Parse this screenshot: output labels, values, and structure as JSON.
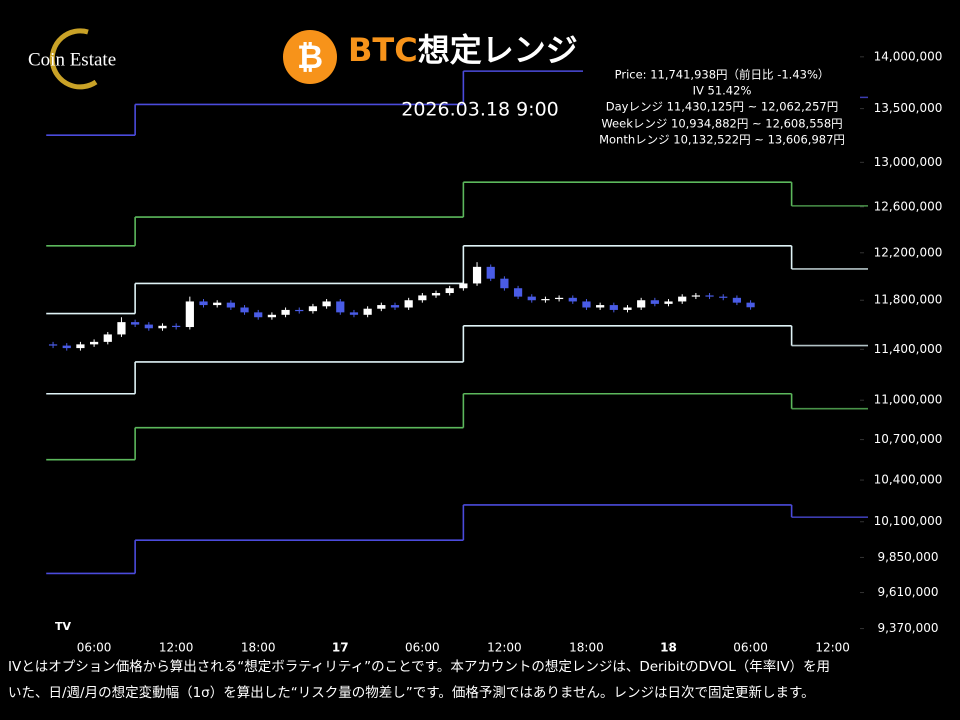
{
  "chart_data": {
    "type": "candlestick",
    "logo": "Coin Estate",
    "title_ticker": "BTC",
    "title": "想定レンジ",
    "subtitle": "2026.03.18 9:00",
    "annotations": [
      "Price: 11,741,938円（前日比 -1.43%）",
      "IV 51.42%",
      "Dayレンジ  11,430,125円 ~ 12,062,257円",
      "Weekレンジ 10,934,882円 ~ 12,608,558円",
      "Monthレンジ 10,132,522円 ~ 13,606,987円"
    ],
    "footnote": [
      "IVとはオプション価格から算出される“想定ボラティリティ”のことです。本アカウントの想定レンジは、DeribitのDVOL（年率IV）を用",
      "いた、日/週/月の想定変動幅（1σ）を算出した“リスク量の物差し”です。価格予測ではありません。レンジは日次で固定更新します。"
    ],
    "log_scale": true,
    "ylim": [
      9230000,
      14570000
    ],
    "yticks": [
      {
        "value": 14000000,
        "label": "14,000,000"
      },
      {
        "value": 13500000,
        "label": "13,500,000"
      },
      {
        "value": 13000000,
        "label": "13,000,000"
      },
      {
        "value": 12600000,
        "label": "12,600,000"
      },
      {
        "value": 12200000,
        "label": "12,200,000"
      },
      {
        "value": 11800000,
        "label": "11,800,000"
      },
      {
        "value": 11400000,
        "label": "11,400,000"
      },
      {
        "value": 11000000,
        "label": "11,000,000"
      },
      {
        "value": 10700000,
        "label": "10,700,000"
      },
      {
        "value": 10400000,
        "label": "10,400,000"
      },
      {
        "value": 10100000,
        "label": "10,100,000"
      },
      {
        "value": 9850000,
        "label": "9,850,000"
      },
      {
        "value": 9610000,
        "label": "9,610,000"
      },
      {
        "value": 9370000,
        "label": "9,370,000"
      }
    ],
    "xlim": [
      -0.88,
      62.0
    ],
    "xticks": [
      {
        "value": 6,
        "label": "06:00"
      },
      {
        "value": 12,
        "label": "12:00"
      },
      {
        "value": 18,
        "label": "18:00"
      },
      {
        "value": 24,
        "label": "17"
      },
      {
        "value": 30,
        "label": "06:00"
      },
      {
        "value": 36,
        "label": "12:00"
      },
      {
        "value": 42,
        "label": "18:00"
      },
      {
        "value": 48,
        "label": "18"
      },
      {
        "value": 54,
        "label": "06:00"
      },
      {
        "value": 60,
        "label": "12:00"
      }
    ],
    "series": [
      {
        "color": "#4b4bdc",
        "x": [
          2.5,
          9,
          33,
          57
        ],
        "values": [
          13250000,
          13540000,
          13860000,
          13606987
        ]
      },
      {
        "color": "#5cb85c",
        "x": [
          2.5,
          9,
          33,
          57
        ],
        "values": [
          12260000,
          12510000,
          12820000,
          12608558
        ]
      },
      {
        "color": "#dff3f7",
        "x": [
          2.5,
          9,
          33,
          57
        ],
        "values": [
          11690000,
          11940000,
          12260000,
          12062257
        ]
      },
      {
        "color": "#dff3f7",
        "x": [
          2.5,
          9,
          33,
          57
        ],
        "values": [
          11050000,
          11300000,
          11590000,
          11430125
        ]
      },
      {
        "color": "#5cb85c",
        "x": [
          2.5,
          9,
          33,
          57
        ],
        "values": [
          10550000,
          10790000,
          11050000,
          10934882
        ]
      },
      {
        "color": "#4b4bdc",
        "x": [
          2.5,
          9,
          33,
          57
        ],
        "values": [
          9740000,
          9970000,
          10220000,
          10132522
        ]
      }
    ],
    "candles": {
      "up_color": "#ffffff",
      "down_color": "#4a5ce6",
      "x": [
        3,
        4,
        5,
        6,
        7,
        8,
        9,
        10,
        11,
        12,
        13,
        14,
        15,
        16,
        17,
        18,
        19,
        20,
        21,
        22,
        23,
        24,
        25,
        26,
        27,
        28,
        29,
        30,
        31,
        32,
        33,
        34,
        35,
        36,
        37,
        38,
        39,
        40,
        41,
        42,
        43,
        44,
        45,
        46,
        47,
        48,
        49,
        50,
        51,
        52,
        53,
        54
      ],
      "open": [
        11440000,
        11430000,
        11410000,
        11440000,
        11460000,
        11520000,
        11620000,
        11600000,
        11570000,
        11590000,
        11580000,
        11790000,
        11760000,
        11780000,
        11740000,
        11700000,
        11660000,
        11680000,
        11720000,
        11710000,
        11750000,
        11790000,
        11700000,
        11680000,
        11730000,
        11760000,
        11740000,
        11800000,
        11840000,
        11860000,
        11900000,
        11940000,
        12080000,
        11980000,
        11900000,
        11830000,
        11800000,
        11810000,
        11820000,
        11790000,
        11740000,
        11760000,
        11720000,
        11740000,
        11800000,
        11770000,
        11790000,
        11830000,
        11840000,
        11830000,
        11820000,
        11780000
      ],
      "high": [
        11460000,
        11450000,
        11460000,
        11480000,
        11540000,
        11660000,
        11640000,
        11620000,
        11610000,
        11610000,
        11830000,
        11810000,
        11800000,
        11800000,
        11760000,
        11720000,
        11700000,
        11740000,
        11740000,
        11770000,
        11810000,
        11810000,
        11720000,
        11750000,
        11780000,
        11780000,
        11820000,
        11860000,
        11880000,
        11920000,
        11960000,
        12120000,
        12100000,
        12000000,
        11920000,
        11850000,
        11830000,
        11840000,
        11840000,
        11810000,
        11780000,
        11780000,
        11760000,
        11820000,
        11820000,
        11810000,
        11850000,
        11860000,
        11860000,
        11850000,
        11840000,
        11800000
      ],
      "low": [
        11410000,
        11390000,
        11390000,
        11420000,
        11440000,
        11500000,
        11580000,
        11550000,
        11550000,
        11560000,
        11560000,
        11740000,
        11740000,
        11720000,
        11680000,
        11640000,
        11640000,
        11660000,
        11690000,
        11690000,
        11730000,
        11680000,
        11660000,
        11660000,
        11710000,
        11720000,
        11720000,
        11780000,
        11820000,
        11840000,
        11880000,
        11920000,
        11960000,
        11880000,
        11810000,
        11780000,
        11780000,
        11790000,
        11770000,
        11720000,
        11720000,
        11700000,
        11700000,
        11720000,
        11750000,
        11750000,
        11770000,
        11810000,
        11810000,
        11800000,
        11760000,
        11721938
      ],
      "close": [
        11430000,
        11410000,
        11440000,
        11460000,
        11520000,
        11620000,
        11600000,
        11570000,
        11590000,
        11580000,
        11790000,
        11760000,
        11780000,
        11740000,
        11700000,
        11660000,
        11680000,
        11720000,
        11710000,
        11750000,
        11790000,
        11700000,
        11680000,
        11730000,
        11760000,
        11740000,
        11800000,
        11840000,
        11860000,
        11900000,
        11940000,
        12080000,
        11980000,
        11900000,
        11830000,
        11800000,
        11810000,
        11820000,
        11790000,
        11740000,
        11760000,
        11720000,
        11740000,
        11800000,
        11770000,
        11790000,
        11830000,
        11840000,
        11830000,
        11820000,
        11780000,
        11741938
      ]
    }
  }
}
